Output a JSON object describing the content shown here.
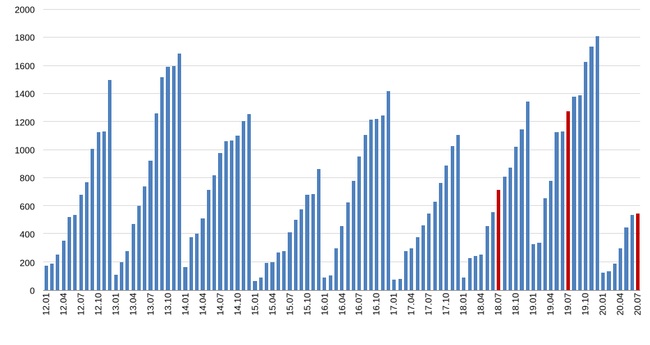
{
  "chart_data": {
    "type": "bar",
    "title": "",
    "xlabel": "",
    "ylabel": "",
    "ylim": [
      0,
      2000
    ],
    "ytick_interval": 200,
    "yticks": [
      0,
      200,
      400,
      600,
      800,
      1000,
      1200,
      1400,
      1600,
      1800,
      2000
    ],
    "xtick_step": 3,
    "grid": true,
    "legend": "none",
    "bar_color": "#4f81bd",
    "highlight_color": "#c00000",
    "gridline_color": "#d9d9d9",
    "axis_color": "#868686",
    "label_color": "#000000",
    "highlight_indices": [
      78,
      90,
      102
    ],
    "categories": [
      "12.01",
      "12.02",
      "12.03",
      "12.04",
      "12.05",
      "12.06",
      "12.07",
      "12.08",
      "12.09",
      "12.10",
      "12.11",
      "12.12",
      "13.01",
      "13.02",
      "13.03",
      "13.04",
      "13.05",
      "13.06",
      "13.07",
      "13.08",
      "13.09",
      "13.10",
      "13.11",
      "13.12",
      "14.01",
      "14.02",
      "14.03",
      "14.04",
      "14.05",
      "14.06",
      "14.07",
      "14.08",
      "14.09",
      "14.10",
      "14.11",
      "14.12",
      "15.01",
      "15.02",
      "15.03",
      "15.04",
      "15.05",
      "15.06",
      "15.07",
      "15.08",
      "15.09",
      "15.10",
      "15.11",
      "15.12",
      "16.01",
      "16.02",
      "16.03",
      "16.04",
      "16.05",
      "16.06",
      "16.07",
      "16.08",
      "16.09",
      "16.10",
      "16.11",
      "16.12",
      "17.01",
      "17.02",
      "17.03",
      "17.04",
      "17.05",
      "17.06",
      "17.07",
      "17.08",
      "17.09",
      "17.10",
      "17.11",
      "17.12",
      "18.01",
      "18.02",
      "18.03",
      "18.04",
      "18.05",
      "18.06",
      "18.07",
      "18.08",
      "18.09",
      "18.10",
      "18.11",
      "18.12",
      "19.01",
      "19.02",
      "19.03",
      "19.04",
      "19.05",
      "19.06",
      "19.07",
      "19.08",
      "19.09",
      "19.10",
      "19.11",
      "19.12",
      "20.01",
      "20.02",
      "20.03",
      "20.04",
      "20.05",
      "20.06",
      "20.07"
    ],
    "values": [
      175,
      190,
      255,
      350,
      520,
      535,
      680,
      770,
      1010,
      1125,
      1130,
      1500,
      110,
      200,
      280,
      470,
      600,
      740,
      925,
      1260,
      1520,
      1595,
      1600,
      1685,
      165,
      375,
      400,
      510,
      715,
      820,
      980,
      1060,
      1065,
      1100,
      1205,
      1255,
      65,
      90,
      195,
      200,
      270,
      280,
      410,
      500,
      575,
      680,
      685,
      865,
      90,
      105,
      300,
      455,
      625,
      780,
      955,
      1105,
      1215,
      1220,
      1245,
      1420,
      75,
      80,
      280,
      300,
      375,
      460,
      545,
      630,
      765,
      890,
      1025,
      1105,
      90,
      230,
      245,
      255,
      455,
      555,
      715,
      810,
      875,
      1020,
      1145,
      1345,
      330,
      340,
      655,
      780,
      1125,
      1130,
      1275,
      1380,
      1390,
      1630,
      1735,
      1810,
      125,
      135,
      190,
      300,
      445,
      535,
      545
    ]
  }
}
